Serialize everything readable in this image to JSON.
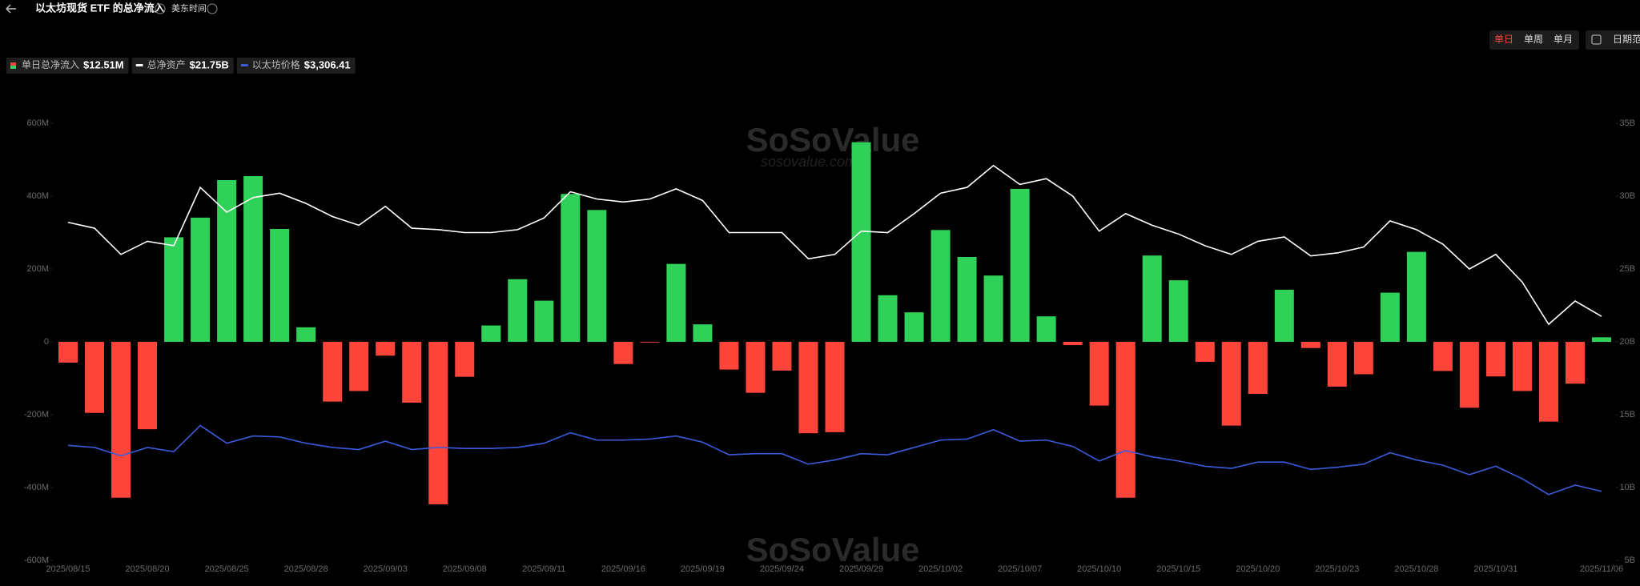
{
  "header": {
    "title": "以太坊现货 ETF 的总净流入",
    "timezone": "美东时间"
  },
  "controls": {
    "periods": [
      "单日",
      "单周",
      "单月"
    ],
    "active": "单日",
    "date_range": "日期范"
  },
  "watermark": {
    "brand": "SoSoValue",
    "site": "sosovalue.com"
  },
  "chart_data": {
    "type": "bar",
    "categories": [
      "2025/08/15",
      null,
      null,
      "2025/08/20",
      null,
      null,
      "2025/08/25",
      null,
      null,
      "2025/08/28",
      null,
      null,
      "2025/09/03",
      null,
      null,
      "2025/09/08",
      null,
      null,
      "2025/09/11",
      null,
      null,
      "2025/09/16",
      null,
      null,
      "2025/09/19",
      null,
      null,
      "2025/09/24",
      null,
      null,
      "2025/09/29",
      null,
      null,
      "2025/10/02",
      null,
      null,
      "2025/10/07",
      null,
      null,
      "2025/10/10",
      null,
      null,
      "2025/10/15",
      null,
      null,
      "2025/10/20",
      null,
      null,
      "2025/10/23",
      null,
      null,
      "2025/10/28",
      null,
      null,
      "2025/10/31",
      null,
      null,
      null,
      "2025/11/06"
    ],
    "series": [
      {
        "name": "单日总净流入",
        "legend_value": "$12.51M",
        "type": "bar",
        "color": "#30d158",
        "negative_color": "#ff453a",
        "values": [
          -57,
          -195,
          -428,
          -240,
          287,
          341,
          444,
          455,
          310,
          40,
          -164,
          -135,
          -38,
          -167,
          -446,
          -96,
          45,
          172,
          113,
          406,
          362,
          -61,
          -2,
          214,
          48,
          -76,
          -140,
          -79,
          -251,
          -248,
          548,
          128,
          81,
          307,
          233,
          182,
          420,
          70,
          -9,
          -175,
          -428,
          237,
          169,
          -55,
          -230,
          -143,
          143,
          -17,
          -123,
          -89,
          135,
          247,
          -80,
          -181,
          -95,
          -135,
          -219,
          -115,
          12.51
        ]
      },
      {
        "name": "总净资产",
        "legend_value": "$21.75B",
        "type": "line",
        "axis": "y2",
        "color": "#ffffff",
        "values": [
          28.2,
          27.8,
          26.0,
          26.9,
          26.6,
          30.6,
          28.9,
          29.9,
          30.2,
          29.5,
          28.6,
          28.0,
          29.3,
          27.8,
          27.7,
          27.5,
          27.5,
          27.7,
          28.5,
          30.3,
          29.8,
          29.6,
          29.8,
          30.5,
          29.7,
          27.5,
          27.5,
          27.5,
          25.7,
          26.0,
          27.6,
          27.5,
          28.8,
          30.2,
          30.6,
          32.1,
          30.8,
          31.2,
          30.0,
          27.6,
          28.8,
          28.0,
          27.4,
          26.6,
          26.0,
          26.9,
          27.2,
          25.9,
          26.1,
          26.5,
          28.3,
          27.7,
          26.7,
          25.0,
          26.0,
          24.1,
          21.2,
          22.8,
          21.75
        ]
      },
      {
        "name": "以太坊价格",
        "legend_value": "$3,306.41",
        "type": "line",
        "axis": "y3",
        "color": "#3b5bdb",
        "values": [
          4442,
          4390,
          4183,
          4390,
          4287,
          4933,
          4494,
          4675,
          4649,
          4494,
          4390,
          4339,
          4546,
          4339,
          4390,
          4365,
          4365,
          4390,
          4494,
          4752,
          4572,
          4572,
          4597,
          4675,
          4520,
          4210,
          4236,
          4236,
          3977,
          4081,
          4236,
          4210,
          4390,
          4572,
          4597,
          4830,
          4546,
          4572,
          4417,
          4055,
          4313,
          4158,
          4055,
          3926,
          3874,
          4029,
          4029,
          3848,
          3900,
          3977,
          4261,
          4081,
          3951,
          3719,
          3926,
          3616,
          3228,
          3460,
          3306.41
        ]
      }
    ],
    "ylim": [
      -600,
      600
    ],
    "yticks": [
      {
        "value": -600,
        "label": "-600M"
      },
      {
        "value": -400,
        "label": "-400M"
      },
      {
        "value": -200,
        "label": "-200M"
      },
      0,
      {
        "value": 200,
        "label": "200M"
      },
      {
        "value": 400,
        "label": "400M"
      },
      {
        "value": 600,
        "label": "600M"
      }
    ],
    "y2lim": [
      5,
      35
    ],
    "y2ticks": [
      {
        "value": 5,
        "label": "5B"
      },
      {
        "value": 10,
        "label": "10B"
      },
      {
        "value": 15,
        "label": "15B"
      },
      {
        "value": 20,
        "label": "20B"
      },
      {
        "value": 25,
        "label": "25B"
      },
      {
        "value": 30,
        "label": "30B"
      },
      {
        "value": 35,
        "label": "35B"
      }
    ],
    "y3lim": [
      1600,
      12400
    ],
    "grid": false
  }
}
